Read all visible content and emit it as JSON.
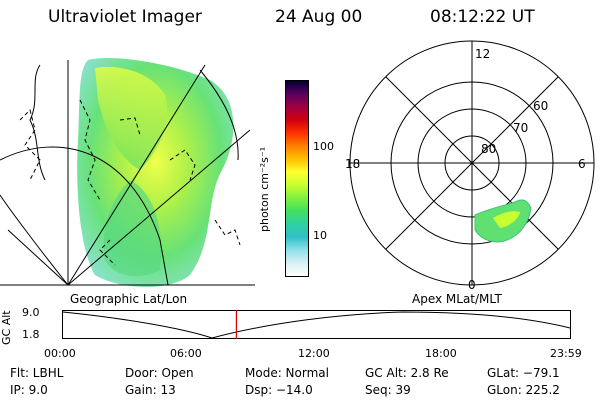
{
  "header": {
    "instrument": "Ultraviolet Imager",
    "date": "24 Aug 00",
    "time": "08:12:22 UT"
  },
  "panels": {
    "left_caption": "Geographic Lat/Lon",
    "right_caption": "Apex MLat/MLT"
  },
  "colorbar": {
    "unit_label": "photon cm⁻²s⁻¹",
    "tick_100": "100",
    "tick_10": "10",
    "colors": [
      "#000033",
      "#5a0060",
      "#a00040",
      "#d00010",
      "#ff3000",
      "#ff8000",
      "#ffc000",
      "#ffff30",
      "#c8ff30",
      "#80f040",
      "#40e060",
      "#30d0a0",
      "#30c0c8",
      "#90e0e8",
      "#d8f0f4",
      "#ffffff"
    ]
  },
  "polar": {
    "mlt_12": "12",
    "mlt_18": "18",
    "mlt_6": "6",
    "mlt_0": "0",
    "lat_60": "60",
    "lat_70": "70",
    "lat_80": "80"
  },
  "altitude_plot": {
    "axis_label": "GC Alt",
    "y_max": "9.0",
    "y_min": "1.8",
    "x_ticks": [
      "00:00",
      "06:00",
      "12:00",
      "18:00",
      "23:59"
    ],
    "current_time_fraction": 0.342
  },
  "info": {
    "flt": "Flt: LBHL",
    "ip": "IP:  9.0",
    "door": "Door: Open",
    "gain": "Gain: 13",
    "mode": "Mode: Normal",
    "dsp": "Dsp:  −14.0",
    "gcalt": "GC Alt: 2.8 Re",
    "seq": "Seq: 39",
    "glat": "GLat: −79.1",
    "glon": "GLon: 225.2"
  }
}
